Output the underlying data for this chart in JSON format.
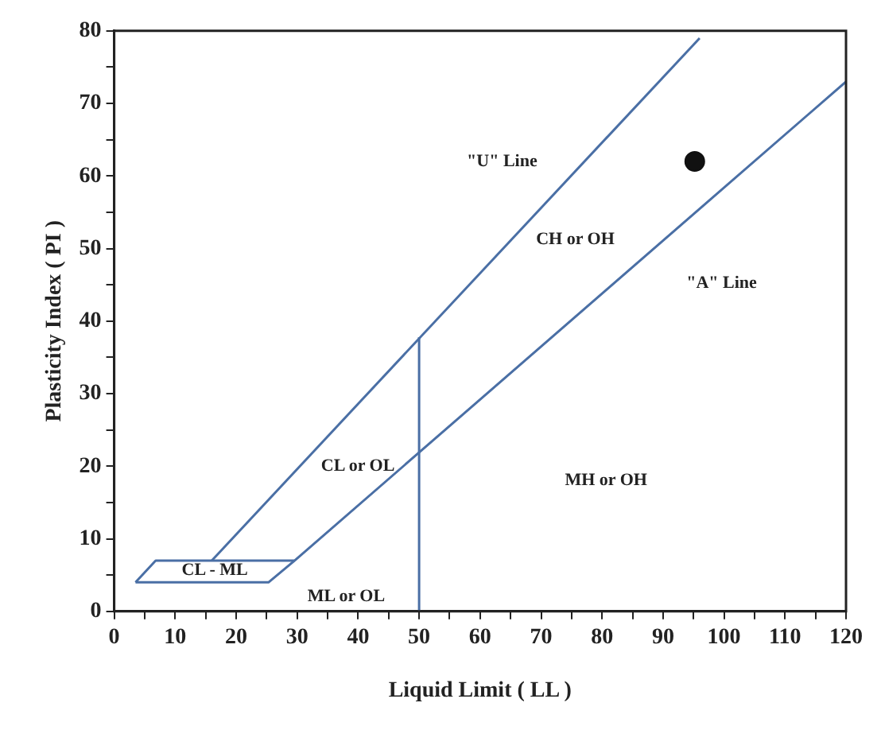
{
  "chart_data": {
    "type": "line",
    "xlabel": "Liquid Limit ( LL )",
    "ylabel": "Plasticity Index ( PI )",
    "xlim": [
      0,
      120
    ],
    "ylim": [
      0,
      80
    ],
    "xticks": [
      0,
      {
        "value": 5,
        "label": null
      },
      10,
      {
        "value": 15,
        "label": null
      },
      20,
      {
        "value": 25,
        "label": null
      },
      30,
      {
        "value": 35,
        "label": null
      },
      40,
      {
        "value": 45,
        "label": null
      },
      50,
      {
        "value": 55,
        "label": null
      },
      60,
      {
        "value": 65,
        "label": null
      },
      70,
      {
        "value": 75,
        "label": null
      },
      80,
      {
        "value": 85,
        "label": null
      },
      90,
      {
        "value": 95,
        "label": null
      },
      100,
      {
        "value": 105,
        "label": null
      },
      110,
      {
        "value": 115,
        "label": null
      },
      120
    ],
    "yticks": [
      0,
      {
        "value": 5,
        "label": null
      },
      10,
      {
        "value": 15,
        "label": null
      },
      20,
      {
        "value": 25,
        "label": null
      },
      30,
      {
        "value": 35,
        "label": null
      },
      40,
      {
        "value": 45,
        "label": null
      },
      50,
      {
        "value": 55,
        "label": null
      },
      60,
      {
        "value": 65,
        "label": null
      },
      70,
      {
        "value": 75,
        "label": null
      },
      80
    ],
    "grid": false,
    "legend": false,
    "marker": "none",
    "line_style": "solid",
    "series": [
      {
        "type": "line",
        "color": "#4a6fa5",
        "x": [
          16,
          96
        ],
        "values": [
          7,
          79
        ]
      },
      {
        "type": "line",
        "color": "#4a6fa5",
        "x": [
          3.5,
          25.3,
          29.6,
          120
        ],
        "values": [
          4,
          4,
          7,
          73
        ]
      },
      {
        "type": "line",
        "color": "#4a6fa5",
        "x": [
          50,
          50
        ],
        "values": [
          0,
          37.8
        ]
      },
      {
        "type": "line",
        "color": "#4a6fa5",
        "x": [
          3.5,
          6.8,
          29.6
        ],
        "values": [
          4,
          7,
          7
        ]
      },
      {
        "type": "scatter",
        "color": "#111111",
        "marker": "circle",
        "x": [
          95.2
        ],
        "values": [
          62
        ]
      }
    ],
    "annotations": [
      "\"U\" Line",
      "CH or OH",
      "\"A\" Line",
      "CL or OL",
      "MH or OH",
      "CL - ML",
      "ML or OL"
    ]
  }
}
